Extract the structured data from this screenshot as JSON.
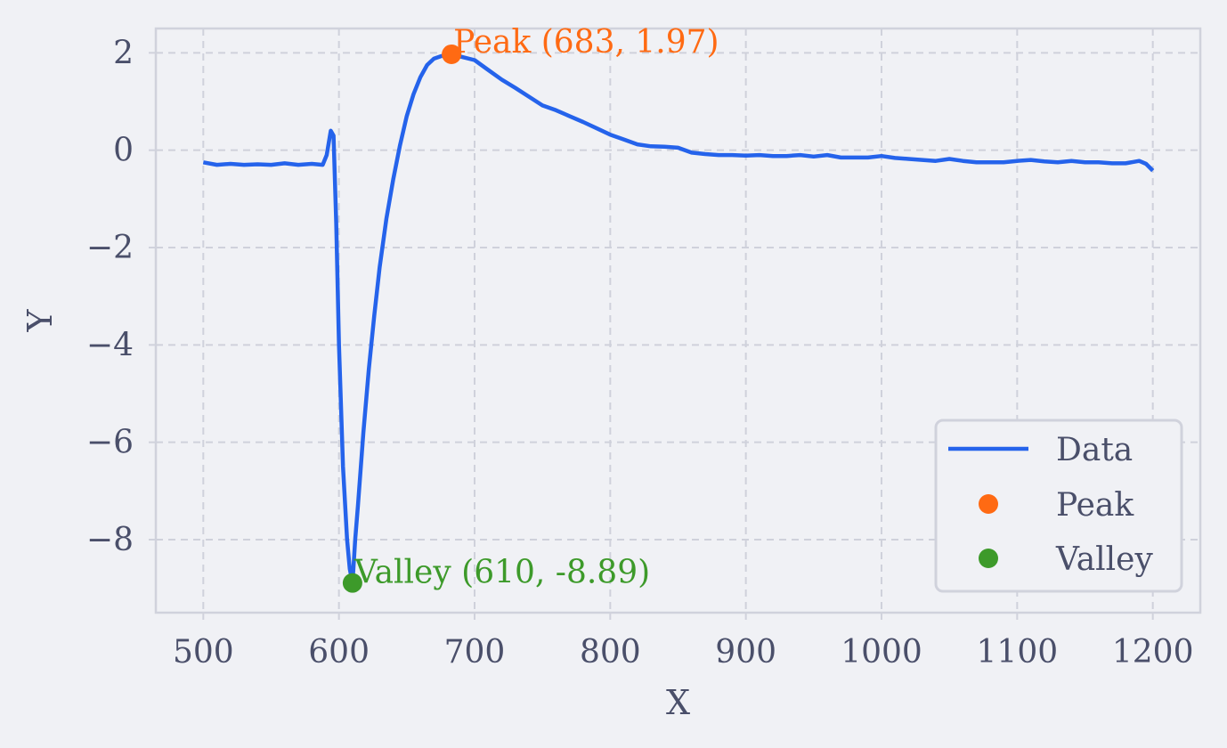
{
  "chart_data": {
    "type": "line",
    "title": "",
    "xlabel": "X",
    "ylabel": "Y",
    "xlim": [
      465,
      1235
    ],
    "ylim": [
      -9.5,
      2.5
    ],
    "xticks": [
      500,
      600,
      700,
      800,
      900,
      1000,
      1100,
      1200
    ],
    "yticks": [
      2,
      0,
      -2,
      -4,
      -6,
      -8
    ],
    "ytick_labels": [
      "2",
      "0",
      "−2",
      "−4",
      "−6",
      "−8"
    ],
    "grid": true,
    "legend": {
      "placement": "lower-right",
      "entries": [
        "Data",
        "Peak",
        "Valley"
      ]
    },
    "colors": {
      "line": "#2563eb",
      "peak": "#ff6a13",
      "valley": "#3d9a2a"
    },
    "series": [
      {
        "name": "Data",
        "x": [
          500,
          510,
          520,
          530,
          540,
          550,
          560,
          570,
          580,
          588,
          591,
          594,
          596,
          598,
          600,
          603,
          606,
          608,
          610,
          612,
          614,
          618,
          622,
          626,
          630,
          635,
          640,
          645,
          650,
          655,
          660,
          665,
          670,
          675,
          680,
          683,
          690,
          700,
          710,
          720,
          730,
          740,
          750,
          760,
          770,
          780,
          790,
          800,
          810,
          820,
          830,
          840,
          850,
          860,
          870,
          880,
          890,
          900,
          910,
          920,
          930,
          940,
          950,
          960,
          970,
          980,
          990,
          1000,
          1010,
          1020,
          1030,
          1040,
          1050,
          1060,
          1070,
          1080,
          1090,
          1100,
          1110,
          1120,
          1130,
          1140,
          1150,
          1160,
          1170,
          1180,
          1190,
          1195,
          1200
        ],
        "y": [
          -0.25,
          -0.3,
          -0.28,
          -0.3,
          -0.29,
          -0.3,
          -0.27,
          -0.3,
          -0.28,
          -0.3,
          -0.1,
          0.4,
          0.3,
          -1.5,
          -4.0,
          -6.5,
          -8.0,
          -8.6,
          -8.89,
          -8.0,
          -7.3,
          -5.8,
          -4.5,
          -3.4,
          -2.4,
          -1.4,
          -0.6,
          0.1,
          0.7,
          1.15,
          1.5,
          1.75,
          1.88,
          1.93,
          1.96,
          1.97,
          1.92,
          1.85,
          1.65,
          1.45,
          1.28,
          1.1,
          0.92,
          0.82,
          0.7,
          0.58,
          0.45,
          0.32,
          0.22,
          0.12,
          0.08,
          0.07,
          0.05,
          -0.05,
          -0.08,
          -0.1,
          -0.1,
          -0.11,
          -0.1,
          -0.12,
          -0.12,
          -0.1,
          -0.13,
          -0.1,
          -0.15,
          -0.15,
          -0.15,
          -0.12,
          -0.16,
          -0.18,
          -0.2,
          -0.22,
          -0.18,
          -0.22,
          -0.25,
          -0.25,
          -0.25,
          -0.22,
          -0.2,
          -0.23,
          -0.25,
          -0.22,
          -0.25,
          -0.25,
          -0.27,
          -0.27,
          -0.22,
          -0.28,
          -0.42
        ]
      }
    ],
    "peak": {
      "x": 683,
      "y": 1.97,
      "label": "Peak (683, 1.97)"
    },
    "valley": {
      "x": 610,
      "y": -8.89,
      "label": "Valley (610, -8.89)"
    }
  }
}
